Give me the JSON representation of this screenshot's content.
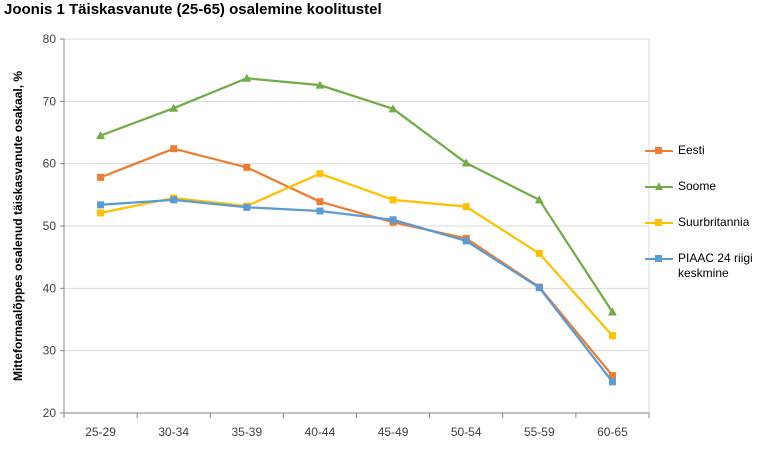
{
  "chart_data": {
    "type": "line",
    "title": "Joonis 1 Täiskasvanute (25-65) osalemine koolitustel",
    "xlabel": "",
    "ylabel": "Mitteformaalõppes osalenud täiskasvanute osakaal, %",
    "categories": [
      "25-29",
      "30-34",
      "35-39",
      "40-44",
      "45-49",
      "50-54",
      "55-59",
      "60-65"
    ],
    "ylim": [
      20,
      80
    ],
    "yticks": [
      20,
      30,
      40,
      50,
      60,
      70,
      80
    ],
    "grid": true,
    "legend_position": "right",
    "series": [
      {
        "name": "Eesti",
        "color": "#ED7D31",
        "marker": "square",
        "values": [
          57.8,
          62.4,
          59.4,
          53.9,
          50.6,
          48.0,
          40.2,
          26.0
        ]
      },
      {
        "name": "Soome",
        "color": "#70AD47",
        "marker": "triangle",
        "values": [
          64.5,
          68.9,
          73.7,
          72.6,
          68.8,
          60.1,
          54.2,
          36.2
        ]
      },
      {
        "name": "Suurbritannia",
        "color": "#FFC000",
        "marker": "square",
        "values": [
          52.1,
          54.5,
          53.2,
          58.4,
          54.2,
          53.1,
          45.6,
          32.4
        ]
      },
      {
        "name": "PIAAC 24 riigi keskmine",
        "color": "#5B9BD5",
        "marker": "square",
        "values": [
          53.4,
          54.2,
          53.0,
          52.4,
          51.0,
          47.6,
          40.1,
          25.0
        ]
      }
    ]
  }
}
